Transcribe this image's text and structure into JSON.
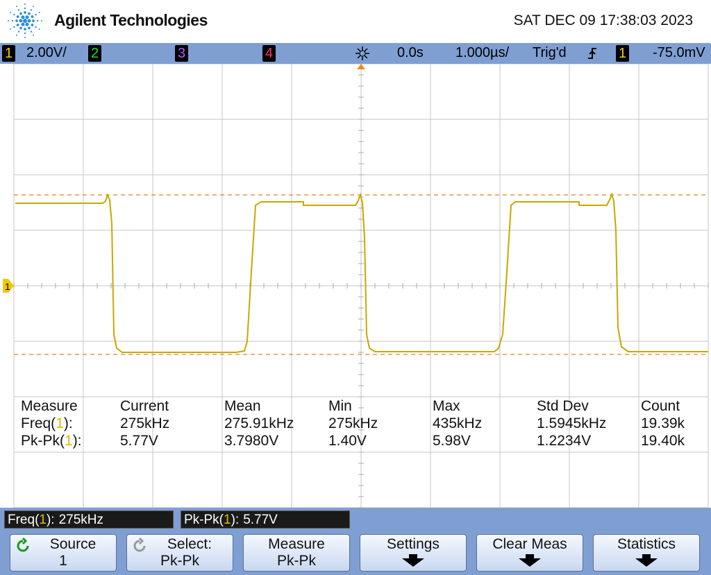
{
  "header": {
    "brand": "Agilent Technologies",
    "datetime": "SAT DEC 09 17:38:03 2023"
  },
  "status_bar": {
    "channel_1": "1",
    "ch1_scale": "2.00V/",
    "channel_2": "2",
    "channel_3": "3",
    "channel_4": "4",
    "time_delay": "0.0s",
    "time_scale": "1.000µs/",
    "trigger_state": "Trig'd",
    "trigger_source": "1",
    "trigger_level": "-75.0mV"
  },
  "ground_marker": "1",
  "measurements": {
    "headers": [
      "Measure",
      "Current",
      "Mean",
      "Min",
      "Max",
      "Std Dev",
      "Count"
    ],
    "rows": [
      {
        "label": [
          "Freq(",
          "1",
          "):"
        ],
        "values": [
          "275kHz",
          "275.91kHz",
          "275kHz",
          "435kHz",
          "1.5945kHz",
          "19.39k"
        ]
      },
      {
        "label": [
          "Pk-Pk(",
          "1",
          "):"
        ],
        "values": [
          "5.77V",
          "3.7980V",
          "1.40V",
          "5.98V",
          "1.2234V",
          "19.40k"
        ]
      }
    ]
  },
  "readouts": [
    {
      "label": [
        "Freq(",
        "1",
        "):"
      ],
      "value": "275kHz"
    },
    {
      "label": [
        "Pk-Pk(",
        "1",
        "):"
      ],
      "value": "5.77V"
    }
  ],
  "softkeys": [
    {
      "label": "Source",
      "value": "1"
    },
    {
      "label": "Select:",
      "value": "Pk-Pk"
    },
    {
      "label": "Measure",
      "value": "Pk-Pk"
    },
    {
      "label": "Settings"
    },
    {
      "label": "Clear Meas"
    },
    {
      "label": "Statistics"
    }
  ]
}
